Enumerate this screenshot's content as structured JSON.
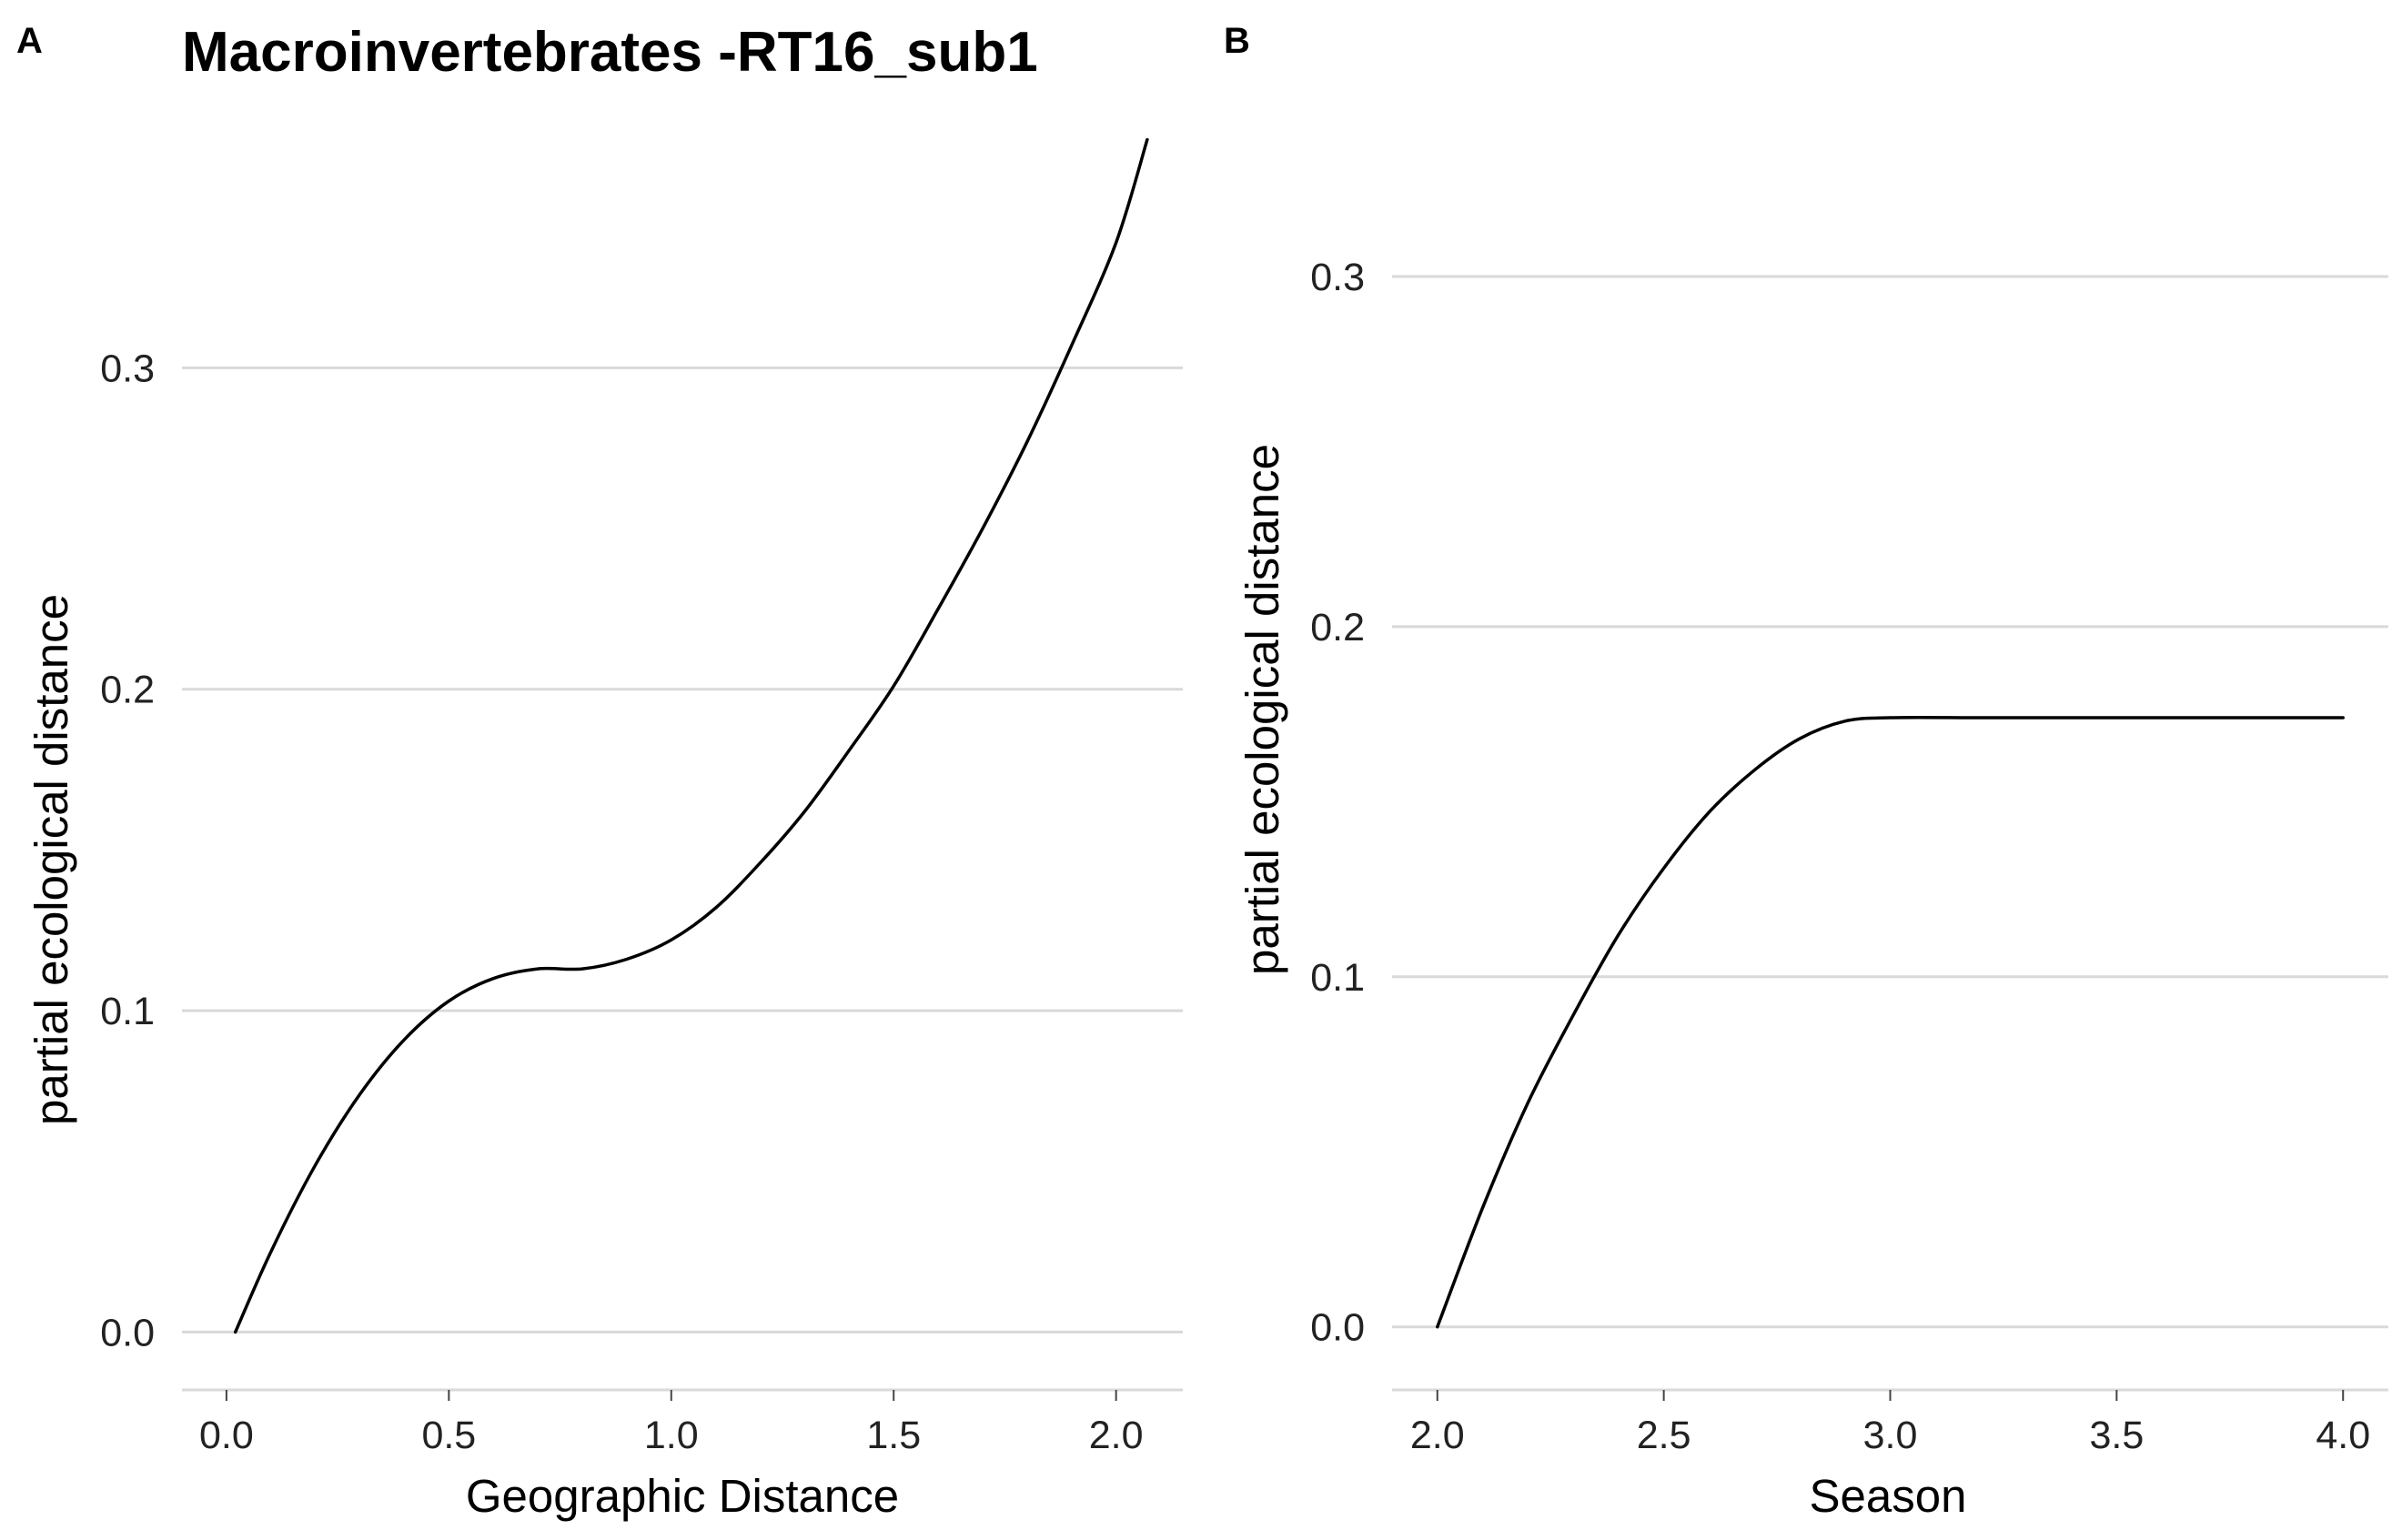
{
  "figure": {
    "background": "#ffffff",
    "line_color": "#000000",
    "grid_color": "#d9d9d9"
  },
  "chart_data": [
    {
      "panel": "A",
      "type": "line",
      "title": "Macroinvertebrates -RT16_sub1",
      "xlabel": "Geographic Distance",
      "ylabel": "partial ecological distance",
      "xlim": [
        -0.1,
        2.15
      ],
      "ylim": [
        -0.018,
        0.372
      ],
      "xticks": [
        0.0,
        0.5,
        1.0,
        1.5,
        2.0
      ],
      "xtick_labels": [
        "0.0",
        "0.5",
        "1.0",
        "1.5",
        "2.0"
      ],
      "yticks": [
        0.0,
        0.1,
        0.2,
        0.3
      ],
      "ytick_labels": [
        "0.0",
        "0.1",
        "0.2",
        "0.3"
      ],
      "grid": "horizontal",
      "series": [
        {
          "x": [
            0.02,
            0.1,
            0.2,
            0.3,
            0.4,
            0.5,
            0.6,
            0.7,
            0.8,
            0.9,
            1.0,
            1.1,
            1.2,
            1.3,
            1.4,
            1.5,
            1.6,
            1.7,
            1.8,
            1.9,
            2.0,
            2.07
          ],
          "y": [
            0.0,
            0.025,
            0.052,
            0.074,
            0.091,
            0.103,
            0.11,
            0.113,
            0.113,
            0.116,
            0.122,
            0.132,
            0.146,
            0.162,
            0.181,
            0.201,
            0.225,
            0.25,
            0.277,
            0.307,
            0.339,
            0.371
          ]
        }
      ]
    },
    {
      "panel": "B",
      "type": "line",
      "title": "",
      "xlabel": "Season",
      "ylabel": "partial ecological distance",
      "xlim": [
        1.9,
        4.1
      ],
      "ylim": [
        -0.018,
        0.34
      ],
      "xticks": [
        2.0,
        2.5,
        3.0,
        3.5,
        4.0
      ],
      "xtick_labels": [
        "2.0",
        "2.5",
        "3.0",
        "3.5",
        "4.0"
      ],
      "yticks": [
        0.0,
        0.1,
        0.2,
        0.3
      ],
      "ytick_labels": [
        "0.0",
        "0.1",
        "0.2",
        "0.3"
      ],
      "grid": "horizontal",
      "series": [
        {
          "x": [
            2.0,
            2.1,
            2.2,
            2.3,
            2.4,
            2.5,
            2.6,
            2.7,
            2.8,
            2.9,
            3.0,
            3.2,
            3.4,
            3.6,
            3.8,
            4.0
          ],
          "y": [
            0.0,
            0.034,
            0.064,
            0.089,
            0.112,
            0.131,
            0.147,
            0.159,
            0.168,
            0.173,
            0.174,
            0.174,
            0.174,
            0.174,
            0.174,
            0.174
          ]
        }
      ]
    }
  ]
}
